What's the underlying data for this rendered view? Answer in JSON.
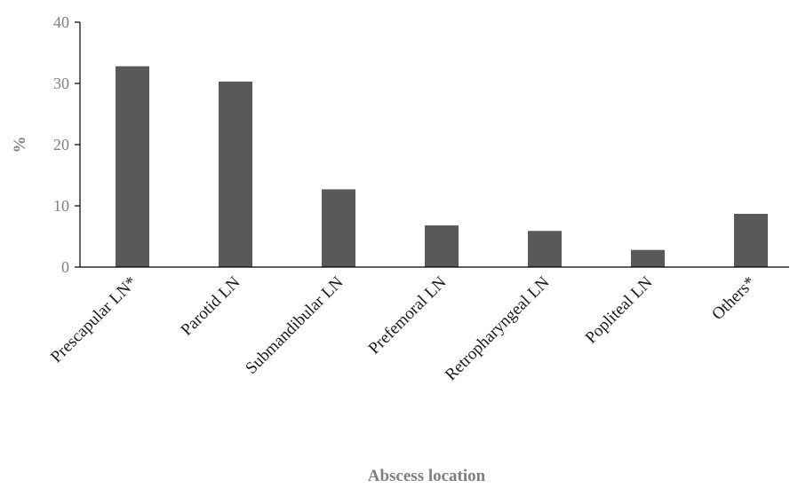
{
  "chart_data": {
    "type": "bar",
    "categories": [
      "Prescapular LN*",
      "Parotid LN",
      "Submandibular LN",
      "Prefemoral LN",
      "Retropharyngeal LN",
      "Popliteal LN",
      "Others*"
    ],
    "values": [
      32.8,
      30.3,
      12.7,
      6.8,
      5.9,
      2.8,
      8.7
    ],
    "xlabel": "Abscess location",
    "ylabel": "%",
    "ylim": [
      0,
      40
    ],
    "yticks": [
      0,
      10,
      20,
      30,
      40
    ],
    "bar_color": "#595959",
    "grid": false,
    "legend": "none"
  }
}
